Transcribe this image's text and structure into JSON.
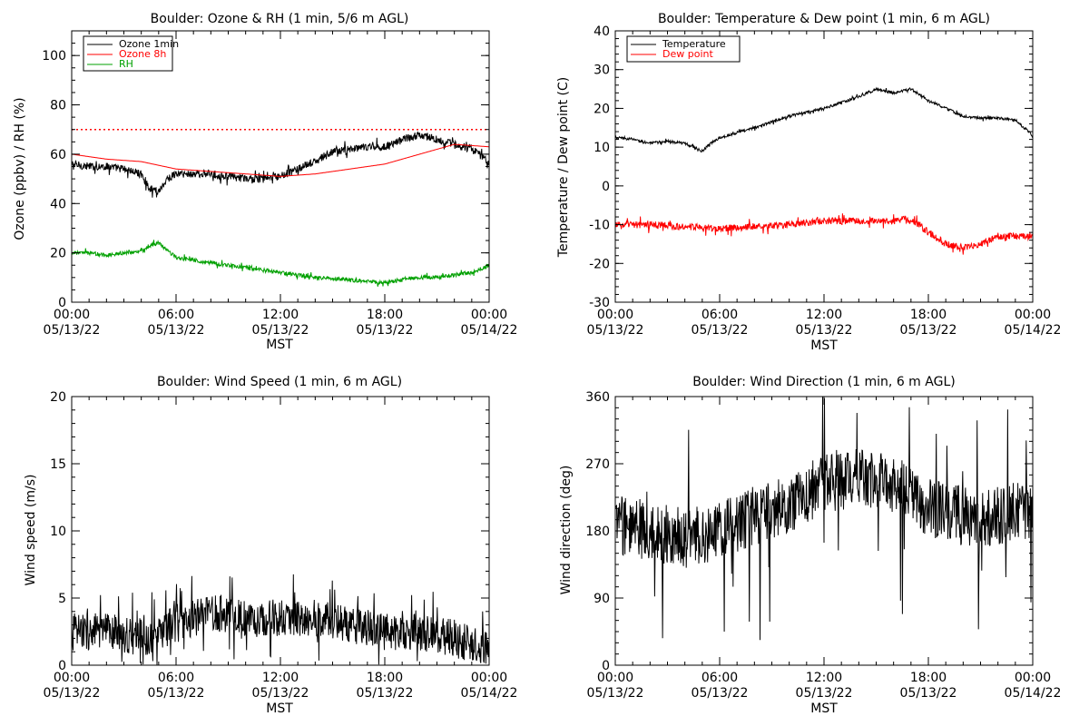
{
  "x_axis_common": {
    "tick_times": [
      "00:00",
      "06:00",
      "12:00",
      "18:00",
      "00:00"
    ],
    "tick_dates": [
      "05/13/22",
      "05/13/22",
      "05/13/22",
      "05/13/22",
      "05/14/22"
    ],
    "x_label": "MST"
  },
  "chart_data": [
    {
      "type": "line",
      "title": "Boulder: Ozone & RH (1 min, 5/6 m AGL)",
      "xlabel": "MST",
      "ylabel": "Ozone (ppbv) / RH (%)",
      "x_unit": "hours since 05/13/22 00:00 MST",
      "xlim": [
        0,
        24
      ],
      "ylim": [
        0,
        110
      ],
      "yticks": [
        0,
        20,
        40,
        60,
        80,
        100
      ],
      "xticks": [
        0,
        6,
        12,
        18,
        24
      ],
      "reference_line": {
        "y": 70,
        "color": "#ff0000",
        "style": "dotted"
      },
      "legend": {
        "placement": "top-left",
        "entries": [
          {
            "name": "Ozone 1min",
            "color": "#000000"
          },
          {
            "name": "Ozone 8h",
            "color": "#ff0000"
          },
          {
            "name": "RH",
            "color": "#00a000"
          }
        ]
      },
      "series": [
        {
          "name": "Ozone 1min",
          "color": "#000000",
          "noise": 1.6,
          "x": [
            0,
            1,
            2,
            3,
            4,
            4.5,
            5,
            5.5,
            6,
            7,
            8,
            9,
            10,
            11,
            12,
            13,
            14,
            15,
            16,
            17,
            18,
            19,
            20,
            21,
            22,
            23,
            24
          ],
          "y": [
            56,
            55,
            55,
            54,
            52,
            46,
            45,
            50,
            52,
            52,
            52,
            51,
            50,
            50,
            51,
            54,
            57,
            61,
            62,
            63,
            63,
            66,
            68,
            66,
            64,
            62,
            57
          ]
        },
        {
          "name": "Ozone 8h",
          "color": "#ff0000",
          "noise": 0,
          "x": [
            0,
            2,
            4,
            6,
            8,
            10,
            12,
            14,
            16,
            18,
            20,
            22,
            24
          ],
          "y": [
            60,
            58,
            57,
            54,
            53,
            52,
            51,
            52,
            54,
            56,
            60,
            64,
            63
          ]
        },
        {
          "name": "RH",
          "color": "#00a000",
          "noise": 0.8,
          "x": [
            0,
            1,
            2,
            3,
            4,
            4.5,
            5,
            5.5,
            6,
            8,
            10,
            12,
            14,
            16,
            18,
            19,
            20,
            21,
            22,
            23,
            24
          ],
          "y": [
            20,
            20,
            19,
            20,
            21,
            23,
            24,
            21,
            18,
            16,
            14,
            12,
            10,
            9,
            8,
            9,
            10,
            10,
            11,
            12,
            15
          ]
        }
      ]
    },
    {
      "type": "line",
      "title": "Boulder: Temperature & Dew point (1 min, 6 m AGL)",
      "xlabel": "MST",
      "ylabel": "Temperature / Dew point (C)",
      "x_unit": "hours since 05/13/22 00:00 MST",
      "xlim": [
        0,
        24
      ],
      "ylim": [
        -30,
        40
      ],
      "yticks": [
        -30,
        -20,
        -10,
        0,
        10,
        20,
        30,
        40
      ],
      "xticks": [
        0,
        6,
        12,
        18,
        24
      ],
      "legend": {
        "placement": "top-left",
        "entries": [
          {
            "name": "Temperature",
            "color": "#000000"
          },
          {
            "name": "Dew point",
            "color": "#ff0000"
          }
        ]
      },
      "series": [
        {
          "name": "Temperature",
          "color": "#000000",
          "noise": 0.35,
          "x": [
            0,
            1,
            2,
            3,
            4,
            5,
            5.5,
            6,
            8,
            10,
            12,
            14,
            15,
            16,
            17,
            18,
            19,
            20,
            21,
            22,
            23,
            24
          ],
          "y": [
            12.5,
            12,
            11,
            11.5,
            11,
            9,
            11,
            12.5,
            15,
            18,
            20,
            23,
            25,
            24,
            25,
            22,
            20,
            18,
            17.5,
            17.5,
            17,
            13
          ]
        },
        {
          "name": "Dew point",
          "color": "#ff0000",
          "noise": 0.9,
          "x": [
            0,
            2,
            4,
            6,
            8,
            10,
            12,
            14,
            16,
            17,
            18,
            19,
            20,
            21,
            22,
            23,
            24
          ],
          "y": [
            -10,
            -10,
            -10.5,
            -11,
            -10.5,
            -10,
            -9,
            -9,
            -9,
            -8.5,
            -12,
            -15,
            -16,
            -15,
            -13,
            -13,
            -13
          ]
        }
      ]
    },
    {
      "type": "line",
      "title": "Boulder: Wind Speed (1 min, 6 m AGL)",
      "xlabel": "MST",
      "ylabel": "Wind speed (m/s)",
      "x_unit": "hours since 05/13/22 00:00 MST",
      "xlim": [
        0,
        24
      ],
      "ylim": [
        0,
        20
      ],
      "yticks": [
        0,
        5,
        10,
        15,
        20
      ],
      "xticks": [
        0,
        6,
        12,
        18,
        24
      ],
      "series": [
        {
          "name": "Wind speed",
          "color": "#000000",
          "noise": 1.4,
          "floor": 0,
          "x": [
            0,
            2,
            4,
            6,
            8,
            10,
            12,
            14,
            16,
            18,
            20,
            22,
            23,
            24
          ],
          "y": [
            2.5,
            2.5,
            2,
            3,
            4,
            3.5,
            3.5,
            3.5,
            3,
            2.5,
            2.5,
            2,
            1.5,
            1
          ]
        }
      ]
    },
    {
      "type": "line",
      "title": "Boulder: Wind Direction (1 min, 6 m AGL)",
      "xlabel": "MST",
      "ylabel": "Wind direction (deg)",
      "x_unit": "hours since 05/13/22 00:00 MST",
      "xlim": [
        0,
        24
      ],
      "ylim": [
        0,
        360
      ],
      "yticks": [
        0,
        90,
        180,
        270,
        360
      ],
      "xticks": [
        0,
        6,
        12,
        18,
        24
      ],
      "series": [
        {
          "name": "Wind direction",
          "color": "#000000",
          "noise": 40,
          "floor": 0,
          "ceil": 360,
          "x": [
            0,
            2,
            4,
            6,
            8,
            10,
            12,
            14,
            16,
            18,
            20,
            22,
            24
          ],
          "y": [
            190,
            180,
            170,
            180,
            200,
            215,
            245,
            250,
            245,
            210,
            200,
            200,
            210
          ]
        }
      ]
    }
  ]
}
